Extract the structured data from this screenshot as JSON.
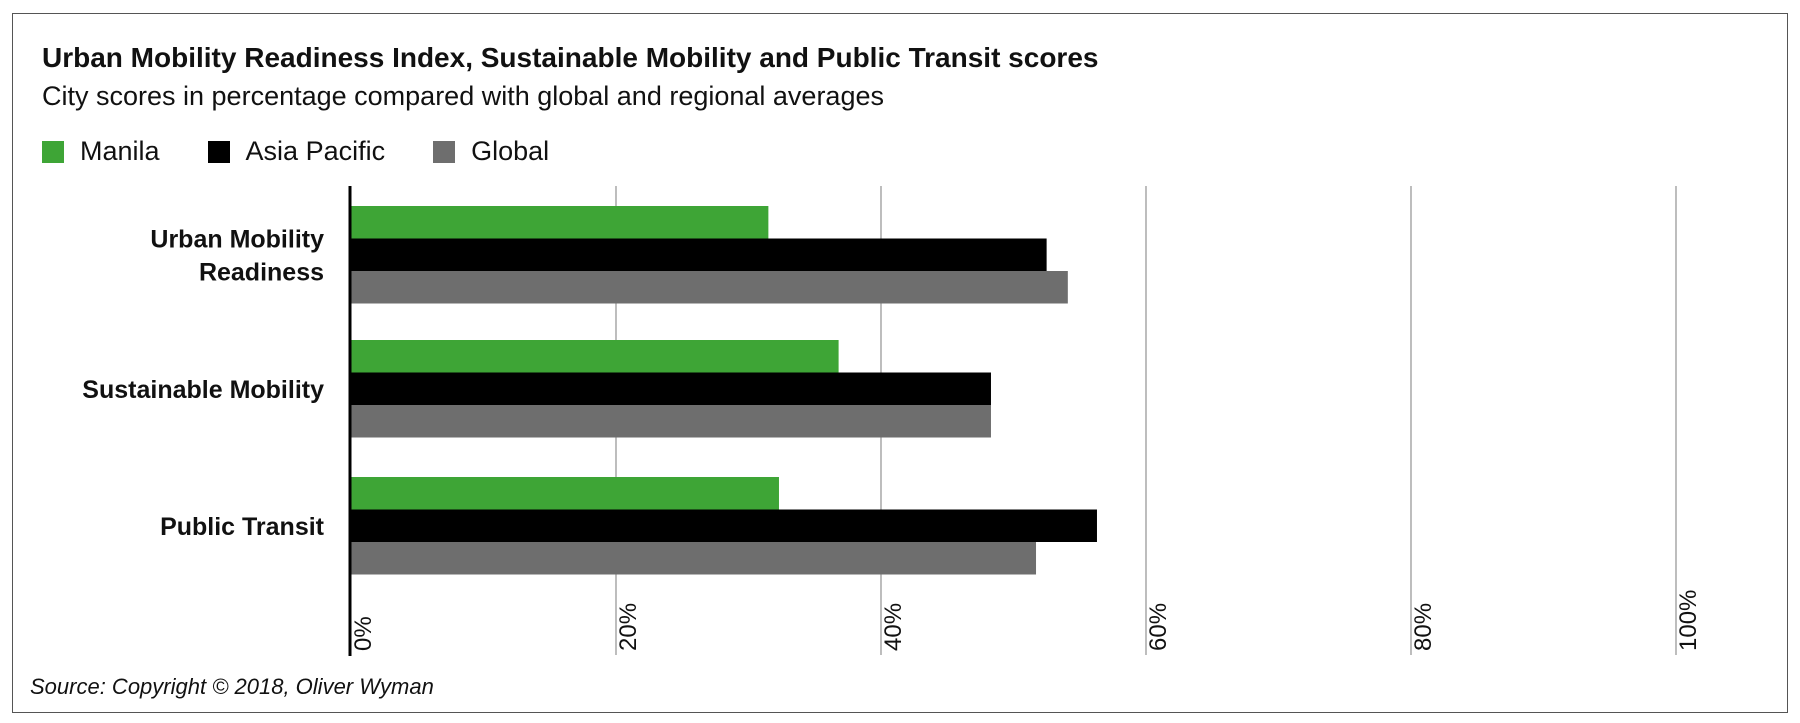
{
  "header": {
    "title": "Urban Mobility Readiness Index, Sustainable Mobility and Public Transit scores",
    "subtitle": "City scores in percentage compared with global and regional averages"
  },
  "footer": {
    "source": "Source: Copyright © 2018, Oliver Wyman"
  },
  "chart_data": {
    "type": "bar",
    "orientation": "horizontal",
    "title": "Urban Mobility Readiness Index, Sustainable Mobility and Public Transit scores",
    "subtitle": "City scores in percentage compared with global and regional averages",
    "categories": [
      [
        "Urban Mobility",
        "Readiness"
      ],
      [
        "Sustainable Mobility"
      ],
      [
        "Public Transit"
      ]
    ],
    "series": [
      {
        "name": "Manila",
        "color": "#3ea536",
        "values": [
          31.5,
          36.8,
          32.3
        ]
      },
      {
        "name": "Asia Pacific",
        "color": "#000000",
        "values": [
          52.5,
          48.3,
          56.3
        ]
      },
      {
        "name": "Global",
        "color": "#6e6e6e",
        "values": [
          54.1,
          48.3,
          51.7
        ]
      }
    ],
    "xlim": [
      0,
      100
    ],
    "ticks": [
      {
        "value": 0,
        "label": "0%"
      },
      {
        "value": 20,
        "label": "20%"
      },
      {
        "value": 40,
        "label": "40%"
      },
      {
        "value": 60,
        "label": "60%"
      },
      {
        "value": 80,
        "label": "80%"
      },
      {
        "value": 100,
        "label": "100%"
      }
    ],
    "grid": true,
    "legend_position": "top-left"
  }
}
